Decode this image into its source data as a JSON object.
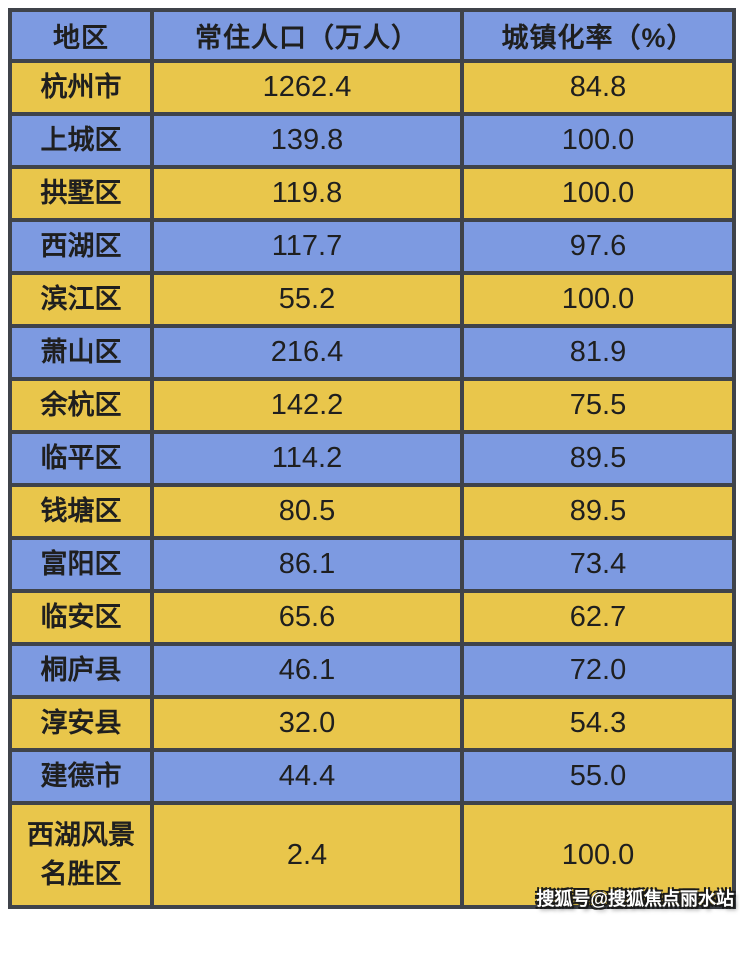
{
  "colors": {
    "blue": "#7d9ae1",
    "yellow": "#e9c64b",
    "border": "#3f434a",
    "text": "#1f1f1f",
    "background": "#ffffff"
  },
  "table": {
    "headers": {
      "region": "地区",
      "population": "常住人口（万人）",
      "urbanization": "城镇化率（%）"
    },
    "rows": [
      {
        "region": "杭州市",
        "population": "1262.4",
        "urbanization": "84.8"
      },
      {
        "region": "上城区",
        "population": "139.8",
        "urbanization": "100.0"
      },
      {
        "region": "拱墅区",
        "population": "119.8",
        "urbanization": "100.0"
      },
      {
        "region": "西湖区",
        "population": "117.7",
        "urbanization": "97.6"
      },
      {
        "region": "滨江区",
        "population": "55.2",
        "urbanization": "100.0"
      },
      {
        "region": "萧山区",
        "population": "216.4",
        "urbanization": "81.9"
      },
      {
        "region": "余杭区",
        "population": "142.2",
        "urbanization": "75.5"
      },
      {
        "region": "临平区",
        "population": "114.2",
        "urbanization": "89.5"
      },
      {
        "region": "钱塘区",
        "population": "80.5",
        "urbanization": "89.5"
      },
      {
        "region": "富阳区",
        "population": "86.1",
        "urbanization": "73.4"
      },
      {
        "region": "临安区",
        "population": "65.6",
        "urbanization": "62.7"
      },
      {
        "region": "桐庐县",
        "population": "46.1",
        "urbanization": "72.0"
      },
      {
        "region": "淳安县",
        "population": "32.0",
        "urbanization": "54.3"
      },
      {
        "region": "建德市",
        "population": "44.4",
        "urbanization": "55.0"
      },
      {
        "region": "西湖风景名胜区",
        "population": "2.4",
        "urbanization": "100.0"
      }
    ]
  },
  "watermark": "搜狐号@搜狐焦点丽水站",
  "chart_data": {
    "type": "table",
    "columns": [
      "地区",
      "常住人口（万人）",
      "城镇化率（%）"
    ],
    "rows": [
      [
        "杭州市",
        1262.4,
        84.8
      ],
      [
        "上城区",
        139.8,
        100.0
      ],
      [
        "拱墅区",
        119.8,
        100.0
      ],
      [
        "西湖区",
        117.7,
        97.6
      ],
      [
        "滨江区",
        55.2,
        100.0
      ],
      [
        "萧山区",
        216.4,
        81.9
      ],
      [
        "余杭区",
        142.2,
        75.5
      ],
      [
        "临平区",
        114.2,
        89.5
      ],
      [
        "钱塘区",
        80.5,
        89.5
      ],
      [
        "富阳区",
        86.1,
        73.4
      ],
      [
        "临安区",
        65.6,
        62.7
      ],
      [
        "桐庐县",
        46.1,
        72.0
      ],
      [
        "淳安县",
        32.0,
        54.3
      ],
      [
        "建德市",
        44.4,
        55.0
      ],
      [
        "西湖风景名胜区",
        2.4,
        100.0
      ]
    ],
    "layout_hints": {
      "header_fill": "blue",
      "row_fill_alternation": [
        "yellow",
        "blue"
      ],
      "grid": "on"
    }
  }
}
